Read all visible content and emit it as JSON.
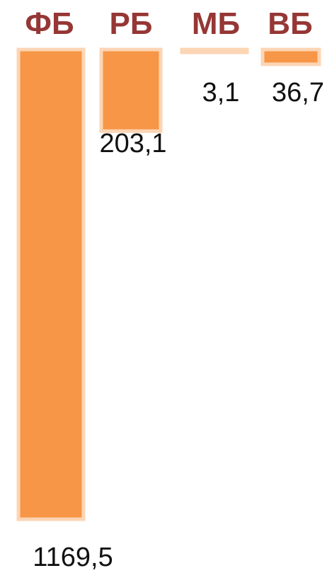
{
  "chart_data": {
    "type": "bar",
    "categories": [
      "ФБ",
      "РБ",
      "МБ",
      "ВБ"
    ],
    "values": [
      1169.5,
      203.1,
      3.1,
      36.7
    ],
    "value_labels": [
      "1169,5",
      "203,1",
      "3,1",
      "36,7"
    ],
    "ylim": [
      0,
      1169.5
    ],
    "orientation": "downward",
    "grid": false,
    "legend": "none"
  },
  "colors": {
    "bar_fill": "#F79646",
    "bar_border": "#FCD5B5",
    "category_label": "#953735",
    "value_label": "#111111",
    "background": "#FFFFFF"
  }
}
